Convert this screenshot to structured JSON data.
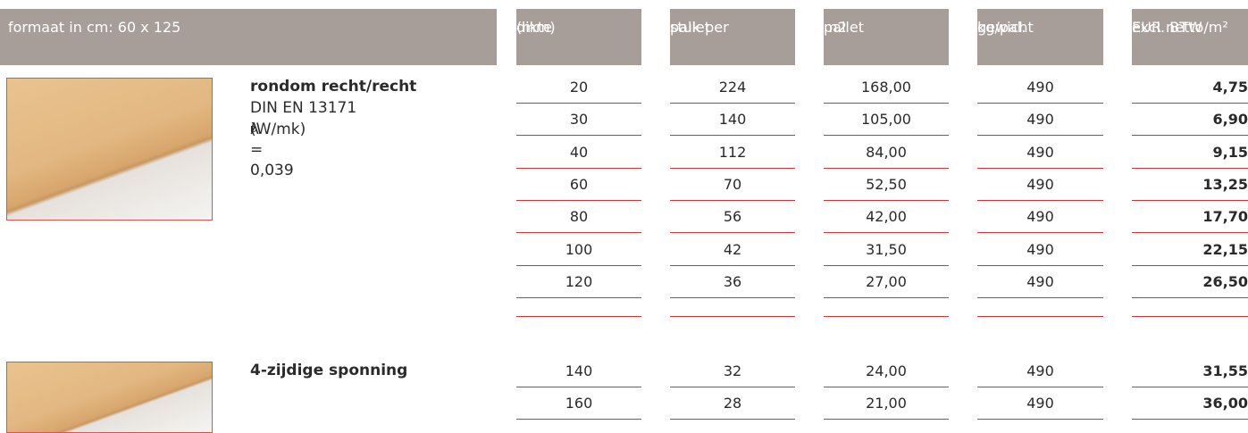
{
  "header": {
    "label": "formaat in cm: 60 x 125",
    "columns": [
      [
        "dikte",
        "(mm)"
      ],
      [
        "stuk per",
        "pallet"
      ],
      [
        "m2",
        "pallet"
      ],
      [
        "gewicht",
        "kg/pal."
      ],
      [
        "EUR netto/m²",
        "excl. BTW"
      ]
    ]
  },
  "products": [
    {
      "name": "rondom recht/recht",
      "standard": "DIN EN 13171",
      "lambda": [
        "λ",
        "D",
        "(W/mk) = 0,039"
      ],
      "rows": [
        [
          "20",
          "224",
          "168,00",
          "490",
          "4,75"
        ],
        [
          "30",
          "140",
          "105,00",
          "490",
          "6,90"
        ],
        [
          "40",
          "112",
          "84,00",
          "490",
          "9,15"
        ],
        [
          "60",
          "70",
          "52,50",
          "490",
          "13,25"
        ],
        [
          "80",
          "56",
          "42,00",
          "490",
          "17,70"
        ],
        [
          "100",
          "42",
          "31,50",
          "490",
          "22,15"
        ],
        [
          "120",
          "36",
          "27,00",
          "490",
          "26,50"
        ]
      ]
    },
    {
      "name": "4-zijdige sponning",
      "rows": [
        [
          "140",
          "32",
          "24,00",
          "490",
          "31,55"
        ],
        [
          "160",
          "28",
          "21,00",
          "490",
          "36,00"
        ]
      ]
    }
  ]
}
